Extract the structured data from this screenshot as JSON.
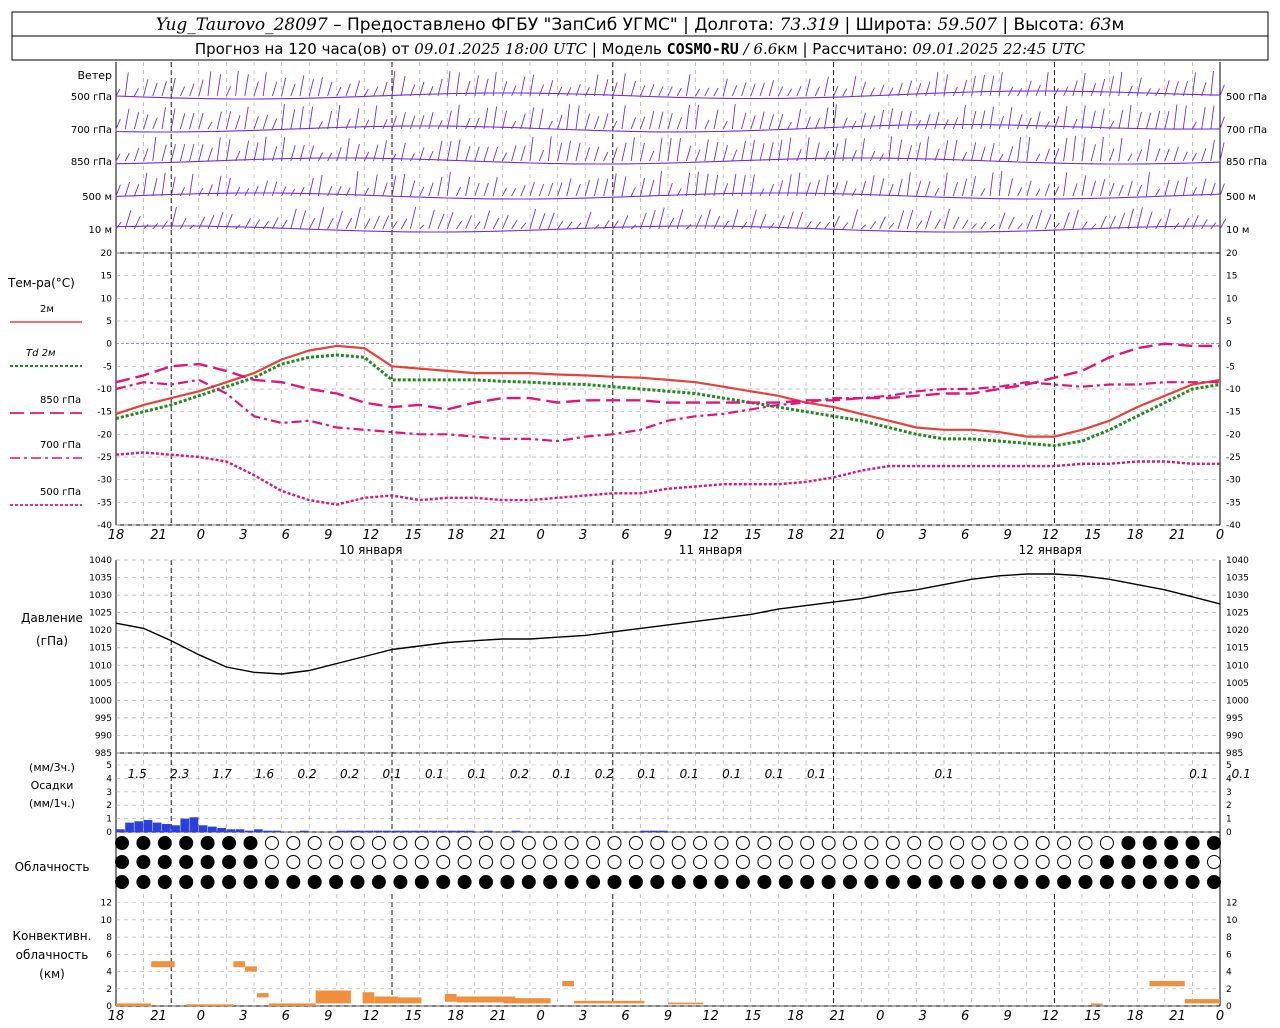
{
  "header": {
    "station": "Yug_Taurovo_28097",
    "provider": " – Предоставлено ФГБУ \"ЗапСиб УГМС\" ",
    "lon_label": " Долгота: ",
    "lon_value": "73.319",
    "lat_label": " Широта: ",
    "lat_value": "59.507",
    "alt_label": " Высота: ",
    "alt_value": "63",
    "alt_unit": "м",
    "forecast_label": "Прогноз на 120 часа(ов) от ",
    "forecast_from": "09.01.2025 18:00 UTC",
    "model_label": " Модель ",
    "model_name": "COSMO-RU",
    "model_res": " / 6.6",
    "model_res_unit": "км",
    "computed_label": " Рассчитано: ",
    "computed_at": "09.01.2025 22:45 UTC"
  },
  "time_axis": {
    "hour_ticks": [
      "18",
      "21",
      "0",
      "3",
      "6",
      "9",
      "12",
      "15",
      "18",
      "21",
      "0",
      "3",
      "6",
      "9",
      "12",
      "15",
      "18",
      "21",
      "0",
      "3",
      "6",
      "9",
      "12",
      "15",
      "18",
      "21",
      "0"
    ],
    "day_labels": [
      "10 января",
      "11 января",
      "12 января"
    ]
  },
  "wind": {
    "title": "Ветер",
    "levels": [
      "500 гПа",
      "700 гПа",
      "850 гПа",
      "500 м",
      "10  м"
    ]
  },
  "temperature": {
    "title": "Тем-ра(°С)",
    "ticks": [
      "20",
      "15",
      "10",
      "5",
      "0",
      "-5",
      "-10",
      "-15",
      "-20",
      "-25",
      "-30",
      "-35",
      "-40"
    ],
    "ylim": [
      -40,
      20
    ],
    "legend": [
      {
        "label": "2м",
        "color": "#e8413c"
      },
      {
        "label": "Td  2м",
        "color": "#1e8c1e"
      },
      {
        "label": "850 гПа",
        "color": "#e0147a"
      },
      {
        "label": "700 гПа",
        "color": "#e0147a"
      },
      {
        "label": "500 гПа",
        "color": "#e0147a"
      }
    ]
  },
  "pressure": {
    "title": "Давление",
    "unit": "(гПа)",
    "ticks": [
      "1040",
      "1035",
      "1030",
      "1025",
      "1020",
      "1015",
      "1010",
      "1005",
      "1000",
      "995",
      "990",
      "985"
    ],
    "ylim": [
      985,
      1040
    ]
  },
  "precip": {
    "label_3h": "(мм/3ч.)",
    "title": "Осадки",
    "label_1h": "(мм/1ч.)",
    "ticks": [
      "5",
      "4",
      "3",
      "2",
      "1",
      "0"
    ],
    "ylim": [
      0,
      5
    ],
    "totals_3h": [
      "1.5",
      "2.3",
      "1.7",
      "1.6",
      "0.2",
      "0.2",
      "0.1",
      "0.1",
      "0.1",
      "0.2",
      "0.1",
      "0.2",
      "0.1",
      "0.1",
      "0.1",
      "0.1",
      "0.1",
      "0.1",
      "0.1",
      "0.1"
    ],
    "color": "#2a3fe0"
  },
  "cloud": {
    "title": "Облачность"
  },
  "convective": {
    "title_line1": "Конвективн.",
    "title_line2": "облачность",
    "unit": "(км)",
    "ticks": [
      "12",
      "10",
      "8",
      "6",
      "4",
      "2",
      "0"
    ],
    "ylim": [
      0,
      13
    ],
    "color": "#f0903c"
  },
  "chart_data": [
    {
      "type": "line",
      "title": "Тем-ра(°С)",
      "x": [
        0,
        3,
        6,
        9,
        12,
        15,
        18,
        21,
        24,
        27,
        30,
        33,
        36,
        39,
        42,
        45,
        48,
        51,
        54,
        57,
        60,
        63,
        66,
        69,
        72,
        75,
        78,
        81,
        84,
        87,
        90,
        93,
        96,
        99,
        102,
        105,
        108,
        111,
        114,
        117,
        120
      ],
      "ylim": [
        -40,
        20
      ],
      "series": [
        {
          "name": "2м",
          "values": [
            -15.5,
            -13.5,
            -12,
            -10.5,
            -8.5,
            -6.5,
            -3.5,
            -1.5,
            -0.5,
            -1,
            -5,
            -5.5,
            -6,
            -6.5,
            -6.5,
            -6.5,
            -6.8,
            -7,
            -7.3,
            -7.5,
            -8,
            -8.5,
            -9.5,
            -10.5,
            -11.5,
            -13,
            -14,
            -15.5,
            -17,
            -18.5,
            -19,
            -19,
            -19.5,
            -20.5,
            -20.5,
            -19,
            -17,
            -14,
            -11.5,
            -9,
            -8
          ]
        },
        {
          "name": "Td  2м",
          "values": [
            -16.5,
            -15,
            -13.5,
            -11.5,
            -9.5,
            -7.5,
            -4.5,
            -3,
            -2.5,
            -3,
            -8,
            -8,
            -8,
            -8,
            -8.3,
            -8.5,
            -8.8,
            -9,
            -9.5,
            -10,
            -10.5,
            -11,
            -12,
            -13,
            -14,
            -15,
            -16,
            -17,
            -18.5,
            -20,
            -21,
            -21,
            -21.5,
            -22,
            -22.5,
            -21.5,
            -19,
            -16,
            -13,
            -10,
            -9
          ]
        },
        {
          "name": "850 гПа",
          "values": [
            -8.5,
            -7,
            -5,
            -4.5,
            -6,
            -8,
            -8.5,
            -10,
            -11,
            -13,
            -14,
            -13.5,
            -14.5,
            -13,
            -12,
            -12,
            -13,
            -12.5,
            -12.5,
            -12.5,
            -13,
            -13,
            -13,
            -13,
            -13,
            -12.5,
            -12.5,
            -12,
            -12,
            -11.5,
            -11,
            -11,
            -10,
            -9,
            -7.5,
            -6,
            -3,
            -1,
            0,
            -0.5,
            -0.5
          ]
        },
        {
          "name": "700 гПа",
          "values": [
            -10,
            -8.5,
            -9,
            -8,
            -11,
            -16,
            -17.5,
            -17,
            -18.5,
            -19,
            -19.5,
            -20,
            -20,
            -20.5,
            -21,
            -21,
            -21.5,
            -20.5,
            -20,
            -19,
            -17,
            -16,
            -15.5,
            -14.5,
            -13.5,
            -13,
            -12,
            -12,
            -11.5,
            -10.5,
            -10,
            -10,
            -9.5,
            -8.5,
            -9,
            -9.5,
            -9,
            -9,
            -8.5,
            -8.5,
            -8.5
          ]
        },
        {
          "name": "500 гПа",
          "values": [
            -24.5,
            -24,
            -24.5,
            -25,
            -26,
            -29,
            -32.5,
            -34.5,
            -35.5,
            -34,
            -33.5,
            -34.5,
            -34,
            -34,
            -34.5,
            -34.5,
            -34,
            -33.5,
            -33,
            -33,
            -32,
            -31.5,
            -31,
            -31,
            -31,
            -30.5,
            -29.5,
            -28,
            -27,
            -27,
            -27,
            -27,
            -27,
            -27,
            -27,
            -26.5,
            -26.5,
            -26,
            -26,
            -26.5,
            -26.5
          ]
        }
      ]
    },
    {
      "type": "line",
      "title": "Давление",
      "x": [
        0,
        3,
        6,
        9,
        12,
        15,
        18,
        21,
        24,
        27,
        30,
        33,
        36,
        39,
        42,
        45,
        48,
        51,
        54,
        57,
        60,
        63,
        66,
        69,
        72,
        75,
        78,
        81,
        84,
        87,
        90,
        93,
        96,
        99,
        102,
        105,
        108,
        111,
        114,
        117,
        120
      ],
      "ylim": [
        985,
        1040
      ],
      "series": [
        {
          "name": "",
          "values": [
            1022,
            1020.5,
            1017,
            1013,
            1009.5,
            1008,
            1007.5,
            1008.5,
            1010.5,
            1012.5,
            1014.5,
            1015.5,
            1016.5,
            1017,
            1017.5,
            1017.5,
            1018,
            1018.5,
            1019.5,
            1020.5,
            1021.5,
            1022.5,
            1023.5,
            1024.5,
            1026,
            1027,
            1028,
            1029,
            1030.5,
            1031.5,
            1033,
            1034.5,
            1035.5,
            1036,
            1036,
            1035.5,
            1034.5,
            1033,
            1031.5,
            1029.5,
            1027.5
          ]
        }
      ]
    },
    {
      "type": "bar",
      "title": "Осадки",
      "x": [
        0,
        1,
        2,
        3,
        4,
        5,
        6,
        7,
        8,
        9,
        10,
        11,
        12,
        13,
        14,
        15,
        16,
        17,
        18,
        19,
        20,
        21,
        22,
        23,
        24,
        25,
        26,
        27,
        28,
        29,
        30,
        31,
        32,
        33,
        34,
        35,
        36,
        37,
        38,
        39,
        40,
        41,
        42,
        43,
        44,
        45,
        46,
        47,
        48,
        49,
        50,
        51,
        52,
        53,
        54,
        55,
        56,
        57,
        58,
        59,
        60
      ],
      "ylim": [
        0,
        5
      ],
      "values": [
        0.2,
        0.7,
        0.8,
        0.9,
        0.7,
        0.6,
        0.5,
        1.0,
        1.1,
        0.5,
        0.4,
        0.3,
        0.2,
        0.2,
        0.1,
        0.2,
        0.1,
        0.1,
        0,
        0,
        0.1,
        0,
        0,
        0,
        0.1,
        0.1,
        0.1,
        0.1,
        0.1,
        0.1,
        0.1,
        0.1,
        0.1,
        0.1,
        0.1,
        0.1,
        0.1,
        0.1,
        0.1,
        0,
        0.1,
        0,
        0,
        0.1,
        0,
        0,
        0,
        0,
        0,
        0,
        0,
        0,
        0,
        0,
        0,
        0,
        0,
        0.1,
        0.1,
        0.1,
        0
      ]
    },
    {
      "type": "bar",
      "title": "Конвективн. облачность",
      "ylim": [
        0,
        13
      ],
      "bars": [
        {
          "x0": 0,
          "x1": 3,
          "bottom": 0,
          "top": 0.3
        },
        {
          "x0": 3,
          "x1": 5,
          "bottom": 4.5,
          "top": 5.2
        },
        {
          "x0": 6,
          "x1": 10,
          "bottom": 0,
          "top": 0.2
        },
        {
          "x0": 10,
          "x1": 11,
          "bottom": 4.5,
          "top": 5.2
        },
        {
          "x0": 11,
          "x1": 12,
          "bottom": 4,
          "top": 4.6
        },
        {
          "x0": 12,
          "x1": 13,
          "bottom": 1,
          "top": 1.5
        },
        {
          "x0": 13,
          "x1": 17,
          "bottom": 0,
          "top": 0.3
        },
        {
          "x0": 17,
          "x1": 20,
          "bottom": 0.3,
          "top": 1.8
        },
        {
          "x0": 21,
          "x1": 22,
          "bottom": 0.3,
          "top": 1.6
        },
        {
          "x0": 22,
          "x1": 24,
          "bottom": 0.3,
          "top": 1.1
        },
        {
          "x0": 24,
          "x1": 26,
          "bottom": 0.3,
          "top": 1.0
        },
        {
          "x0": 28,
          "x1": 29,
          "bottom": 0.5,
          "top": 1.4
        },
        {
          "x0": 29,
          "x1": 34,
          "bottom": 0.4,
          "top": 1.1
        },
        {
          "x0": 33,
          "x1": 37,
          "bottom": 0.3,
          "top": 0.9
        },
        {
          "x0": 38,
          "x1": 39,
          "bottom": 2.3,
          "top": 2.9
        },
        {
          "x0": 39,
          "x1": 45,
          "bottom": 0.3,
          "top": 0.6
        },
        {
          "x0": 47,
          "x1": 50,
          "bottom": 0.2,
          "top": 0.4
        },
        {
          "x0": 83,
          "x1": 84,
          "bottom": 0.1,
          "top": 0.3
        },
        {
          "x0": 88,
          "x1": 91,
          "bottom": 2.3,
          "top": 2.9
        },
        {
          "x0": 91,
          "x1": 94,
          "bottom": 0.3,
          "top": 0.8
        }
      ]
    }
  ]
}
